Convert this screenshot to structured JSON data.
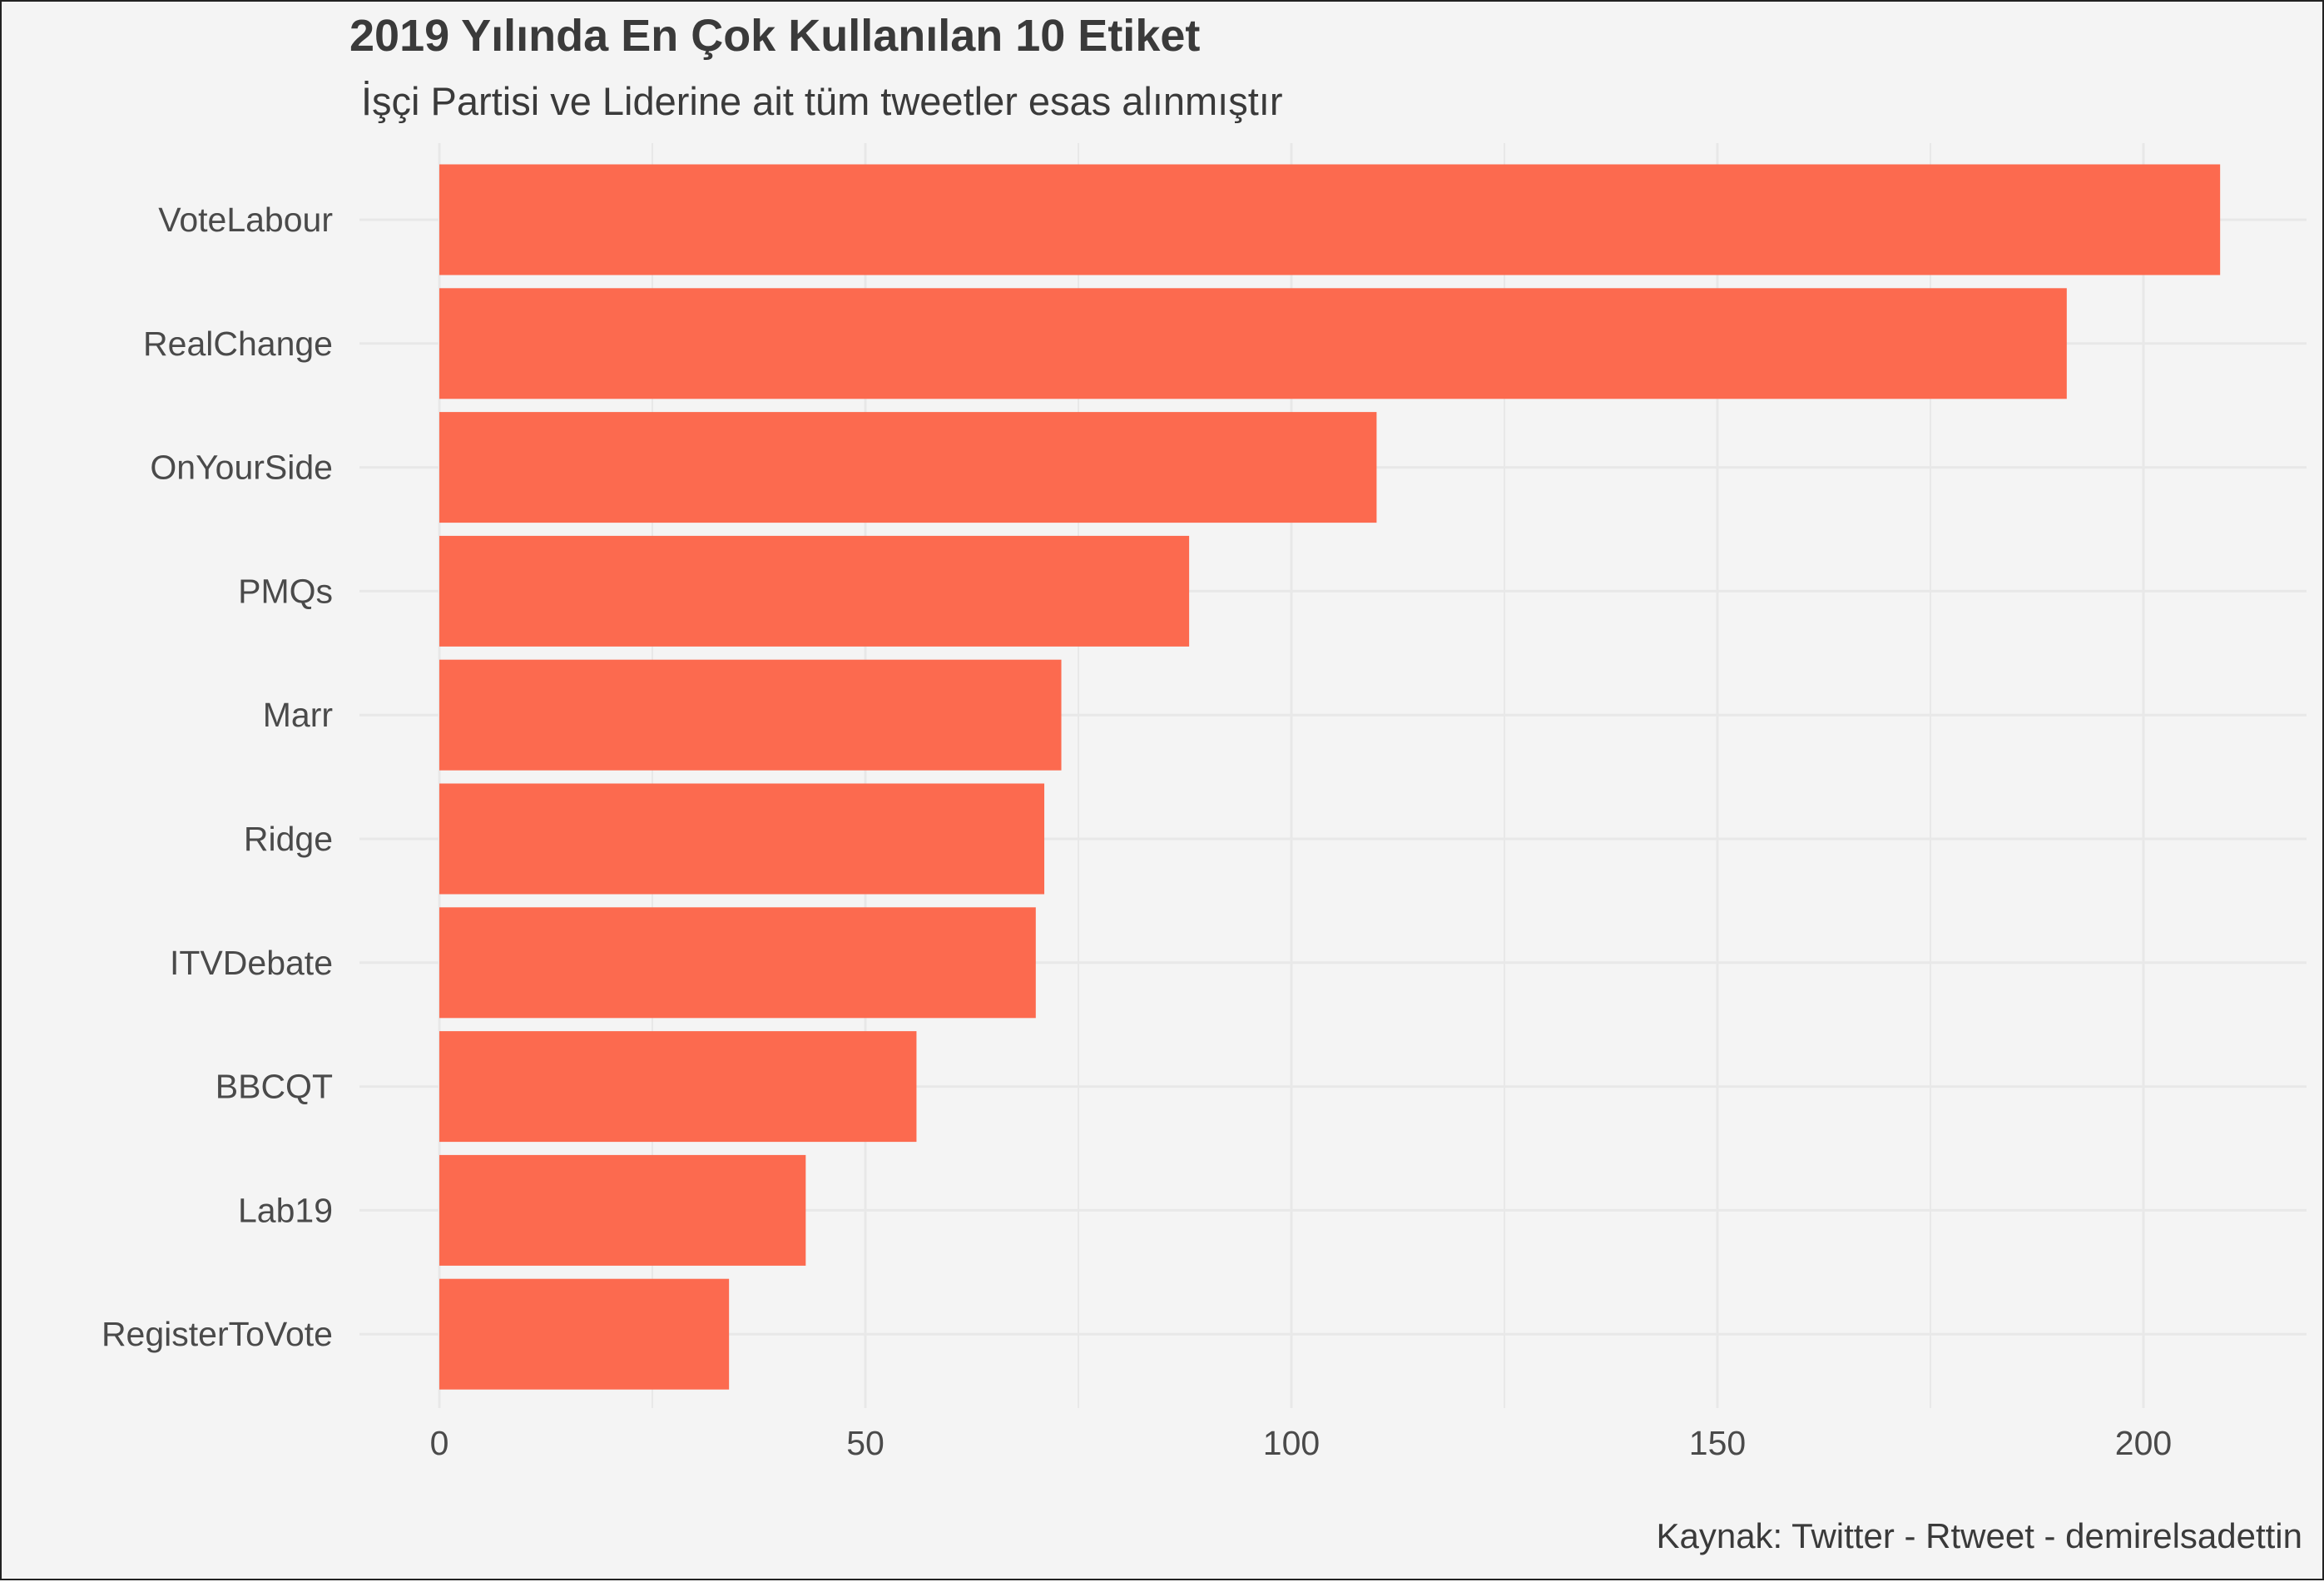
{
  "chart_data": {
    "type": "bar",
    "orientation": "horizontal",
    "title": "2019 Yılında En Çok Kullanılan 10 Etiket",
    "subtitle": "İşçi Partisi ve Liderine ait tüm tweetler esas alınmıştır",
    "caption": "Kaynak: Twitter - Rtweet - demirelsadettin",
    "categories": [
      "VoteLabour",
      "RealChange",
      "OnYourSide",
      "PMQs",
      "Marr",
      "Ridge",
      "ITVDebate",
      "BBCQT",
      "Lab19",
      "RegisterToVote"
    ],
    "values": [
      209,
      191,
      110,
      88,
      73,
      71,
      70,
      56,
      43,
      34
    ],
    "xlim": [
      0,
      209
    ],
    "xticks": [
      0,
      50,
      100,
      150,
      200
    ],
    "xlabel": "",
    "ylabel": "",
    "grid": true,
    "legend": "none",
    "bar_color": "#fc6a4f",
    "background": "#f4f4f4",
    "grid_color": "#e8e8e8"
  }
}
